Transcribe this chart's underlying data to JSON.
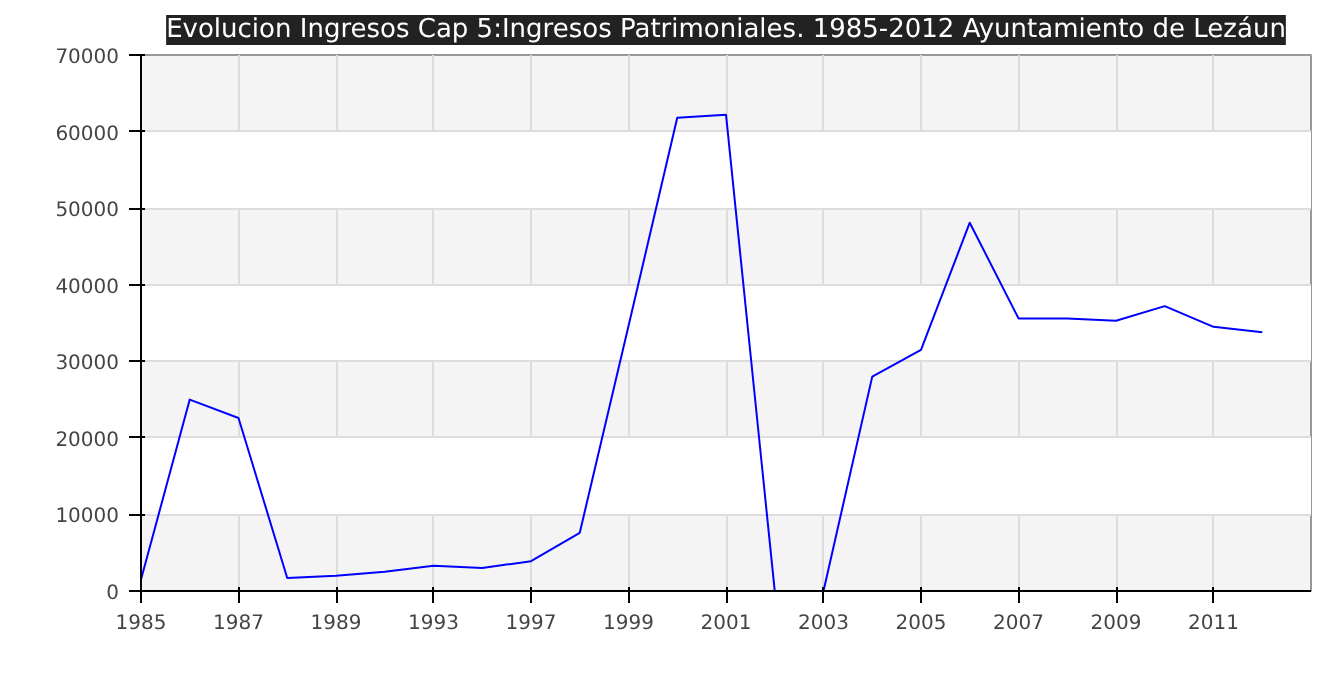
{
  "chart_data": {
    "type": "line",
    "title": "Evolucion Ingresos Cap 5:Ingresos Patrimoniales. 1985-2012 Ayuntamiento de Lezáun",
    "categories": [
      "1985",
      null,
      "1987",
      null,
      "1989",
      null,
      "1993",
      null,
      "1997",
      null,
      "1999",
      null,
      "2001",
      null,
      "2003",
      null,
      "2005",
      null,
      "2007",
      null,
      "2009",
      null,
      "2011",
      null
    ],
    "series": [
      {
        "color": "#0000ff",
        "values": [
          1500,
          25000,
          22600,
          1700,
          2000,
          2500,
          3300,
          3000,
          3900,
          7600,
          34600,
          61800,
          62200,
          0,
          0,
          28000,
          31500,
          48100,
          35600,
          35600,
          35300,
          37200,
          34500,
          33800
        ]
      }
    ],
    "ylim": [
      0,
      70000
    ],
    "yticks": [
      0,
      10000,
      20000,
      30000,
      40000,
      50000,
      60000,
      70000
    ],
    "grid": true,
    "marker": "none",
    "line_style": "solid"
  }
}
